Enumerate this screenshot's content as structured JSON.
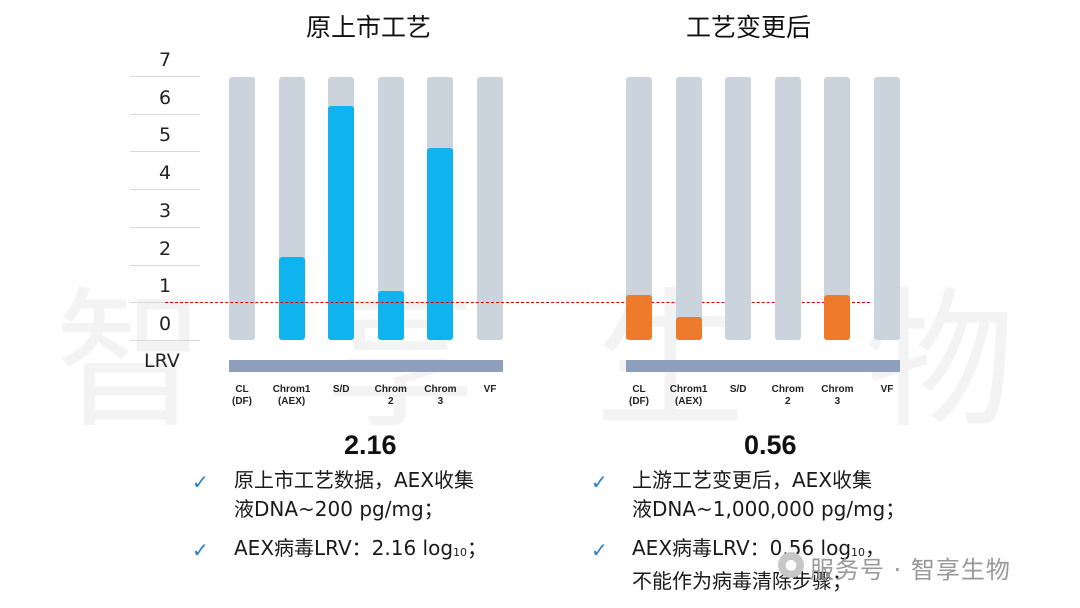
{
  "chart_data": [
    {
      "type": "bar",
      "title": "原上市工艺",
      "categories": [
        [
          "CL",
          "(DF)"
        ],
        [
          "Chrom1",
          "(AEX)"
        ],
        [
          "S/D"
        ],
        [
          "Chrom",
          "2"
        ],
        [
          "Chrom",
          "3"
        ],
        [
          "VF"
        ]
      ],
      "values": [
        0,
        2.2,
        6.2,
        1.3,
        5.1,
        0
      ],
      "ylabel": "LRV",
      "ylim": [
        0,
        7
      ],
      "yticks": [
        "0",
        "1",
        "2",
        "3",
        "4",
        "5",
        "6",
        "7"
      ],
      "bar_color": "#0fb4ee",
      "track_color": "#cbd3dd",
      "reference_line": {
        "y": 1.0,
        "color": "#e00000",
        "style": "dashed"
      },
      "summary_value": "2.16"
    },
    {
      "type": "bar",
      "title": "工艺变更后",
      "categories": [
        [
          "CL",
          "(DF)"
        ],
        [
          "Chrom1",
          "(AEX)"
        ],
        [
          "S/D"
        ],
        [
          "Chrom",
          "2"
        ],
        [
          "Chrom",
          "3"
        ],
        [
          "VF"
        ]
      ],
      "values": [
        1.2,
        0.6,
        0,
        0,
        1.2,
        0
      ],
      "ylabel": "LRV",
      "ylim": [
        0,
        7
      ],
      "bar_color": "#ee7b2c",
      "track_color": "#cbd3dd",
      "reference_line": {
        "y": 1.0,
        "color": "#e00000",
        "style": "dashed"
      },
      "summary_value": "0.56"
    }
  ],
  "left_notes": {
    "n1_line1": "原上市工艺数据，AEX收集",
    "n1_line2": "液DNA~200 pg/mg；",
    "n2_main": "AEX病毒LRV：2.16 log",
    "n2_sub": "10",
    "n2_tail": "；"
  },
  "right_notes": {
    "n1_line1": "上游工艺变更后，AEX收集",
    "n1_line2": "液DNA~1,000,000 pg/mg；",
    "n2_main": "AEX病毒LRV：0.56 log",
    "n2_sub": "10",
    "n2_tail": "，",
    "n2_line2": "不能作为病毒清除步骤；"
  },
  "check_mark": "✓",
  "watermark": "智享生物",
  "footer": {
    "icon": "wechat-icon",
    "text": "服务号 · 智享生物"
  }
}
